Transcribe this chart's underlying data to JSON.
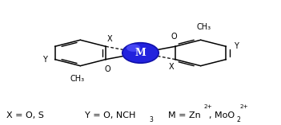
{
  "background_color": "#ffffff",
  "line_color": "#000000",
  "metal_color_main": "#2222dd",
  "metal_color_hi": "#5555ff",
  "metal_label": "M",
  "fig_width": 3.51,
  "fig_height": 1.57,
  "dpi": 100,
  "mx": 0.5,
  "my": 0.575,
  "ring_r": 0.105,
  "legend": {
    "x_text": "X = O, S",
    "y_text": "Y = O, NCH",
    "y_sub": "3",
    "m_text1": "M = Zn",
    "m_sup1": "2+",
    "m_text2": ", MoO",
    "m_sub2": "2",
    "m_sup2": "2+"
  }
}
